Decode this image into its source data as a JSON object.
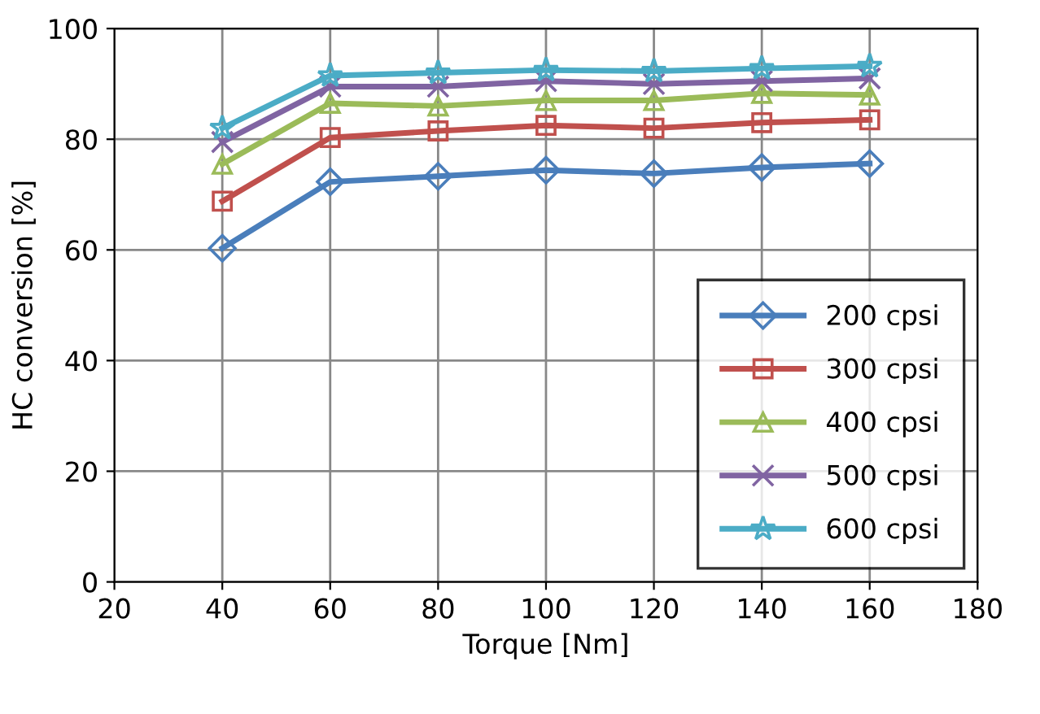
{
  "chart_data": {
    "type": "line",
    "xlabel": "Torque [Nm]",
    "ylabel": "HC conversion [%]",
    "x": [
      40,
      60,
      80,
      100,
      120,
      140,
      160
    ],
    "series": [
      {
        "name": "200 cpsi",
        "color": "#4a7ebb",
        "marker": "diamond",
        "values": [
          60.3,
          72.3,
          73.3,
          74.4,
          73.8,
          74.9,
          75.6
        ]
      },
      {
        "name": "300 cpsi",
        "color": "#c0504d",
        "marker": "square",
        "values": [
          68.8,
          80.3,
          81.5,
          82.5,
          82,
          83,
          83.5
        ]
      },
      {
        "name": "400 cpsi",
        "color": "#9bbb59",
        "marker": "triangle",
        "values": [
          75.5,
          86.5,
          86,
          87,
          87,
          88.3,
          88
        ]
      },
      {
        "name": "500 cpsi",
        "color": "#8064a2",
        "marker": "cross",
        "values": [
          79.5,
          89.5,
          89.5,
          90.5,
          90,
          90.5,
          91
        ]
      },
      {
        "name": "600 cpsi",
        "color": "#4bacc6",
        "marker": "star",
        "values": [
          82,
          91.5,
          92,
          92.5,
          92.3,
          92.8,
          93.2
        ]
      }
    ],
    "xlim": [
      20,
      180
    ],
    "xticks": [
      20,
      40,
      60,
      80,
      100,
      120,
      140,
      160,
      180
    ],
    "ylim": [
      0,
      100
    ],
    "yticks": [
      0,
      20,
      40,
      60,
      80,
      100
    ],
    "grid": true,
    "legend": "bottom right",
    "line_style": "solid"
  }
}
